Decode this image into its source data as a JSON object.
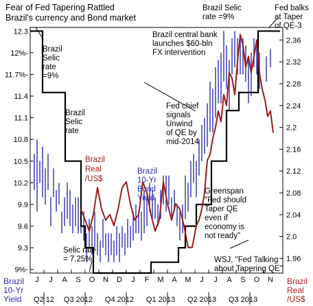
{
  "chart_data": {
    "type": "line",
    "title": "Fear of Fed Tapering Rattled Brazil's currency and Bond market",
    "title_lines": [
      "Fear of Fed Tapering Rattled",
      "Brazil's currency and Bond market"
    ],
    "left_axis_label": [
      "Brazil",
      "10-Yr",
      "Yield"
    ],
    "right_axis_label": [
      "Brazil",
      "Real",
      "/US$"
    ],
    "left_axis": {
      "ticks": [
        9.0,
        9.3,
        9.6,
        9.9,
        10.2,
        10.5,
        10.8,
        11.1,
        11.4,
        11.7,
        12.0,
        12.3
      ],
      "tick_labels": [
        "9%-",
        "9.3",
        "9.6",
        "9.9",
        "10.2",
        "10.5",
        "10.8",
        "11.1",
        "11.4",
        "11.7%-",
        "12%-",
        "12.3"
      ],
      "range": [
        8.95,
        12.35
      ]
    },
    "right_axis": {
      "ticks": [
        1.96,
        2.0,
        2.04,
        2.08,
        2.12,
        2.16,
        2.2,
        2.24,
        2.28,
        2.32,
        2.36
      ],
      "tick_labels": [
        "1.96",
        "2.0",
        "2.04",
        "2.08",
        "2.12",
        "2.16",
        "2.2",
        "2.24",
        "2.28",
        "2.32",
        "2.36"
      ],
      "range": [
        1.933,
        2.383
      ]
    },
    "x_axis": {
      "range": [
        0,
        18.4
      ],
      "month_labels": [
        "J",
        "J",
        "A",
        "S",
        "O",
        "N",
        "D",
        "J",
        "F",
        "M",
        "A",
        "M",
        "J",
        "J",
        "A",
        "S",
        "O",
        "N"
      ],
      "quarter_labels": [
        "Q2 12",
        "Q3 2012",
        "Q4 2012",
        "Q1 2013",
        "Q2 2013",
        "Q3 2013"
      ],
      "quarter_label_pos": [
        0.5,
        3.0,
        6.0,
        9.0,
        12.0,
        15.0
      ]
    },
    "selic": {
      "name": "Brazil Selic rate",
      "x": [
        0,
        0.9,
        0.9,
        2.55,
        2.55,
        3.7,
        3.7,
        4.0,
        4.0,
        4.6,
        4.6,
        8.8,
        8.8,
        10.8,
        10.8,
        11.3,
        11.3,
        12.1,
        12.1,
        13.2,
        13.2,
        14.3,
        14.3,
        15.2,
        15.2,
        16.6,
        16.6,
        18.2
      ],
      "y": [
        12.3,
        12.3,
        11.45,
        11.45,
        10.5,
        10.5,
        9.6,
        9.6,
        9.3,
        9.3,
        8.95,
        8.95,
        9.1,
        9.1,
        9.3,
        9.3,
        9.6,
        9.6,
        9.9,
        9.9,
        10.5,
        10.5,
        11.2,
        11.2,
        11.45,
        11.45,
        12.3,
        12.3
      ]
    },
    "real": {
      "name": "Brazil Real /US$",
      "x": [
        3.7,
        4.0,
        4.3,
        4.6,
        4.9,
        5.2,
        5.5,
        5.8,
        6.1,
        6.4,
        6.7,
        7.0,
        7.3,
        7.6,
        7.9,
        8.2,
        8.5,
        8.8,
        9.1,
        9.4,
        9.7,
        10.0,
        10.3,
        10.6,
        10.9,
        11.2,
        11.5,
        11.8,
        12.1,
        12.3,
        12.5,
        12.7,
        12.9,
        13.1,
        13.3,
        13.5,
        13.7,
        13.9,
        14.1,
        14.3,
        14.5,
        14.7,
        14.9,
        15.1,
        15.3,
        15.5,
        15.7,
        15.9,
        16.1,
        16.3,
        16.5,
        16.7,
        16.9,
        17.1,
        17.3,
        17.5,
        17.7
      ],
      "y": [
        2.05,
        2.03,
        2.01,
        2.04,
        2.09,
        2.05,
        2.03,
        2.04,
        2.02,
        2.05,
        2.09,
        2.1,
        2.06,
        2.03,
        2.04,
        2.1,
        2.08,
        2.04,
        2.01,
        2.03,
        2.1,
        2.06,
        2.03,
        2.06,
        2.05,
        2.02,
        1.98,
        1.98,
        2.02,
        2.03,
        2.05,
        2.08,
        2.14,
        2.15,
        2.18,
        2.2,
        2.23,
        2.21,
        2.26,
        2.24,
        2.3,
        2.29,
        2.26,
        2.32,
        2.37,
        2.35,
        2.31,
        2.33,
        2.3,
        2.33,
        2.36,
        2.3,
        2.27,
        2.25,
        2.22,
        2.23,
        2.19
      ]
    },
    "bond_yield": {
      "name": "Brazil 10-Yr Bond Yield",
      "bars": [
        [
          0.3,
          10.1,
          10.6
        ],
        [
          0.5,
          9.8,
          10.8
        ],
        [
          0.7,
          10.2,
          10.5
        ],
        [
          0.9,
          10.0,
          10.7
        ],
        [
          1.1,
          9.9,
          10.4
        ],
        [
          1.3,
          10.1,
          10.6
        ],
        [
          1.5,
          9.6,
          10.0
        ],
        [
          1.7,
          10.0,
          10.4
        ],
        [
          1.9,
          9.8,
          10.1
        ],
        [
          2.1,
          9.9,
          10.2
        ],
        [
          2.3,
          9.5,
          9.8
        ],
        [
          2.5,
          9.6,
          10.0
        ],
        [
          2.7,
          9.7,
          10.2
        ],
        [
          2.9,
          9.6,
          10.1
        ],
        [
          3.1,
          9.5,
          9.9
        ],
        [
          3.3,
          9.6,
          10.0
        ],
        [
          3.5,
          9.5,
          10.0
        ],
        [
          3.7,
          9.5,
          10.0
        ],
        [
          3.9,
          9.4,
          9.8
        ],
        [
          4.1,
          9.1,
          9.5
        ],
        [
          4.3,
          9.3,
          9.7
        ],
        [
          4.5,
          9.2,
          9.6
        ],
        [
          4.7,
          9.3,
          9.8
        ],
        [
          4.9,
          9.2,
          9.5
        ],
        [
          5.1,
          9.1,
          9.4
        ],
        [
          5.3,
          9.3,
          9.7
        ],
        [
          5.5,
          9.2,
          9.5
        ],
        [
          5.7,
          9.1,
          9.5
        ],
        [
          5.9,
          9.2,
          9.5
        ],
        [
          6.1,
          9.1,
          9.4
        ],
        [
          6.3,
          9.2,
          9.6
        ],
        [
          6.5,
          9.1,
          9.5
        ],
        [
          6.7,
          9.3,
          9.6
        ],
        [
          6.9,
          9.2,
          9.5
        ],
        [
          7.1,
          9.3,
          9.7
        ],
        [
          7.3,
          9.3,
          9.6
        ],
        [
          7.5,
          9.4,
          9.8
        ],
        [
          7.7,
          9.5,
          9.9
        ],
        [
          7.9,
          9.5,
          9.8
        ],
        [
          8.1,
          9.4,
          9.8
        ],
        [
          8.3,
          9.5,
          10.1
        ],
        [
          8.5,
          9.6,
          10.0
        ],
        [
          8.7,
          9.8,
          10.2
        ],
        [
          8.9,
          9.7,
          10.1
        ],
        [
          9.1,
          9.7,
          10.0
        ],
        [
          9.3,
          9.6,
          9.9
        ],
        [
          9.5,
          9.7,
          10.1
        ],
        [
          9.7,
          9.9,
          10.3
        ],
        [
          9.9,
          9.8,
          10.3
        ],
        [
          10.1,
          9.9,
          10.3
        ],
        [
          10.3,
          9.7,
          10.0
        ],
        [
          10.5,
          9.8,
          10.1
        ],
        [
          10.7,
          9.6,
          9.9
        ],
        [
          10.9,
          9.4,
          9.8
        ],
        [
          11.1,
          9.5,
          9.9
        ],
        [
          11.3,
          9.7,
          10.3
        ],
        [
          11.5,
          9.8,
          10.2
        ],
        [
          11.7,
          10.0,
          10.5
        ],
        [
          11.9,
          10.2,
          10.6
        ],
        [
          12.1,
          10.0,
          10.5
        ],
        [
          12.3,
          10.3,
          10.8
        ],
        [
          12.5,
          10.5,
          11.0
        ],
        [
          12.7,
          10.6,
          11.1
        ],
        [
          12.9,
          10.7,
          11.3
        ],
        [
          13.1,
          10.9,
          11.6
        ],
        [
          13.3,
          10.9,
          11.5
        ],
        [
          13.5,
          11.1,
          11.8
        ],
        [
          13.7,
          11.3,
          11.9
        ],
        [
          13.9,
          11.3,
          12.0
        ],
        [
          14.1,
          11.6,
          12.3
        ],
        [
          14.3,
          11.5,
          12.1
        ],
        [
          14.5,
          11.2,
          11.9
        ],
        [
          14.7,
          11.7,
          12.2
        ],
        [
          14.9,
          11.8,
          12.3
        ],
        [
          15.1,
          11.7,
          12.2
        ],
        [
          15.3,
          11.7,
          12.2
        ],
        [
          15.5,
          11.7,
          12.2
        ],
        [
          15.7,
          11.6,
          12.1
        ],
        [
          15.9,
          11.3,
          11.9
        ],
        [
          16.1,
          11.4,
          12.0
        ],
        [
          16.3,
          11.8,
          12.2
        ],
        [
          16.5,
          11.7,
          12.1
        ],
        [
          16.7,
          11.5,
          12.0
        ],
        [
          17.2,
          11.6,
          11.95
        ],
        [
          17.5,
          11.8,
          12.05
        ]
      ]
    },
    "annotations": [
      {
        "id": "selic-9-topleft",
        "lines": [
          "Brazil",
          "Selic",
          "rate",
          "=9%"
        ]
      },
      {
        "id": "selic-midleft",
        "lines": [
          "Brazil",
          "Selic",
          "rate"
        ]
      },
      {
        "id": "real-label",
        "lines": [
          "Brazil",
          "Real",
          "/US$"
        ]
      },
      {
        "id": "bond-label",
        "lines": [
          "Brazil",
          "10-Yr",
          "Bond",
          "Yield"
        ]
      },
      {
        "id": "selic-725",
        "lines": [
          "Selic rate",
          "= 7.25%"
        ]
      },
      {
        "id": "selic-9-top",
        "lines": [
          "Brazil Selic",
          "rate =9%"
        ]
      },
      {
        "id": "fx-intervention",
        "lines": [
          "Brazil central bank",
          "launches $60-bln",
          "FX intervention"
        ]
      },
      {
        "id": "fed-balks",
        "lines": [
          "Fed balks",
          "at Taper",
          "of QE-3"
        ]
      },
      {
        "id": "fed-chief",
        "lines": [
          "Fed chief",
          "signals",
          "Unwind",
          "of QE by",
          "mid-2014"
        ]
      },
      {
        "id": "greenspan",
        "lines": [
          "Greenspan",
          "\"Fed should",
          "Taper QE",
          "even if",
          "economy is",
          "not ready\""
        ]
      },
      {
        "id": "wsj",
        "lines": [
          "WSJ, \"Fed Talking",
          "about Tapering QE\""
        ]
      }
    ],
    "colors": {
      "selic": "#000000",
      "real": "#9b1b1b",
      "bond": "#2c2cb0",
      "axis_text": "#000000",
      "left_label": "#2c2cb0",
      "right_label": "#b01818"
    }
  }
}
